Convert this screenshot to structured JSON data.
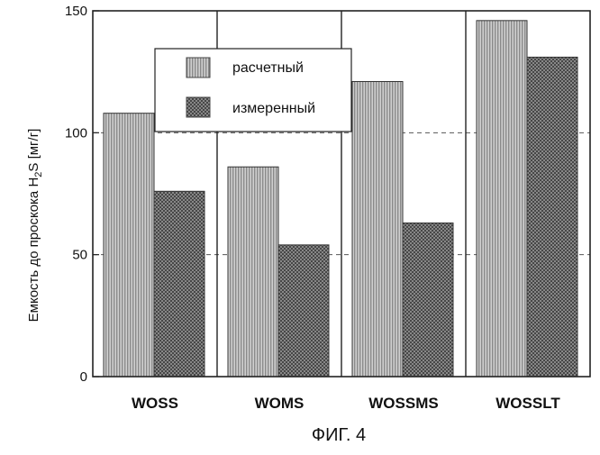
{
  "chart_data": {
    "type": "bar",
    "title": "",
    "xlabel": "",
    "ylabel": "Емкость до проскока H2S [мг/г]",
    "ylabel_parts": {
      "pre": "Емкость до проскока H",
      "sub": "2",
      "post": "S [мг/г]"
    },
    "ylim": [
      0,
      150
    ],
    "yticks": [
      0,
      50,
      100,
      150
    ],
    "grid": "dashed horizontal at 50 and 100",
    "categories": [
      "WOSS",
      "WOMS",
      "WOSSMS",
      "WOSSLT"
    ],
    "series": [
      {
        "name": "расчетный",
        "values": [
          108,
          86,
          121,
          146
        ],
        "color": "#aaaaaa",
        "pattern": "vertical-lines"
      },
      {
        "name": "измеренный",
        "values": [
          76,
          54,
          63,
          131
        ],
        "color": "#6e6e6e",
        "pattern": "crosshatch"
      }
    ],
    "legend": {
      "position": "top-center-left"
    },
    "caption": "ФИГ. 4"
  }
}
